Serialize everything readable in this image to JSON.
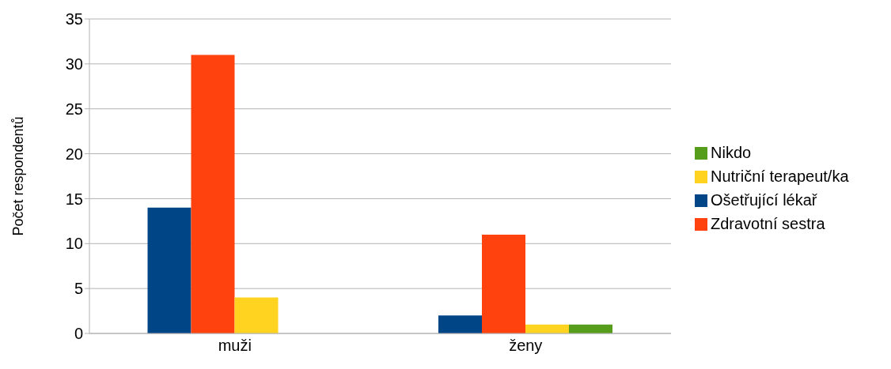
{
  "chart_data": {
    "type": "bar",
    "ylabel": "Počet respondentů",
    "categories": [
      "muži",
      "ženy"
    ],
    "series": [
      {
        "name": "Ošetřující lékař",
        "color": "#004586",
        "values": [
          14,
          2
        ]
      },
      {
        "name": "Zdravotní sestra",
        "color": "#ff420e",
        "values": [
          31,
          11
        ]
      },
      {
        "name": "Nutriční terapeut/ka",
        "color": "#ffd320",
        "values": [
          4,
          1
        ]
      },
      {
        "name": "Nikdo",
        "color": "#579d1c",
        "values": [
          0,
          1
        ]
      }
    ],
    "ylim": [
      0,
      35
    ],
    "yticks": [
      0,
      5,
      10,
      15,
      20,
      25,
      30,
      35
    ],
    "grid": "y",
    "legend": "right"
  }
}
